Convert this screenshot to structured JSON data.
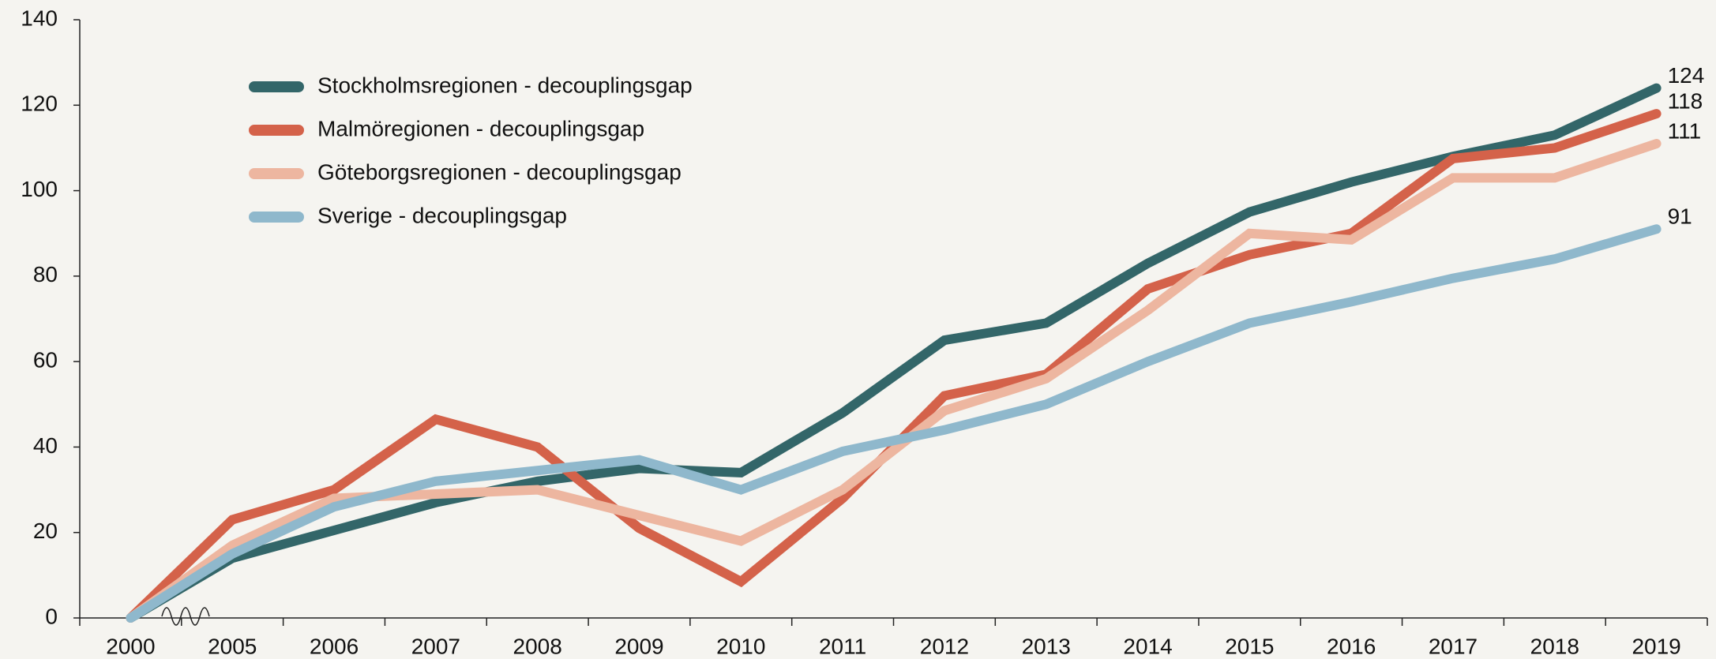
{
  "chart_data": {
    "type": "line",
    "categories": [
      "2000",
      "2005",
      "2006",
      "2007",
      "2008",
      "2009",
      "2010",
      "2011",
      "2012",
      "2013",
      "2014",
      "2015",
      "2016",
      "2017",
      "2018",
      "2019"
    ],
    "series": [
      {
        "name": "Stockholmsregionen - decouplingsgap",
        "color": "#336669",
        "values": [
          0,
          14,
          20.5,
          27,
          32,
          35,
          34,
          48,
          65,
          69,
          83,
          95,
          102,
          108,
          113,
          124
        ]
      },
      {
        "name": "Malmöregionen - decouplingsgap",
        "color": "#d4624a",
        "values": [
          0,
          23,
          30,
          46.5,
          40,
          21,
          8.5,
          28,
          52,
          57,
          77,
          85,
          90,
          107.5,
          110,
          118
        ]
      },
      {
        "name": "Göteborgsregionen - decouplingsgap",
        "color": "#edb6a0",
        "values": [
          0,
          17,
          28,
          29,
          30,
          24,
          18,
          30,
          48.5,
          56,
          72,
          90,
          88.5,
          103,
          103,
          111
        ]
      },
      {
        "name": "Sverige - decouplingsgap",
        "color": "#8fb8cc",
        "values": [
          0,
          15,
          26,
          32,
          34.5,
          37,
          30,
          39,
          44,
          50,
          60,
          69,
          74,
          79.5,
          84,
          91
        ]
      }
    ],
    "ylim": [
      0,
      140
    ],
    "yticks": [
      0,
      20,
      40,
      60,
      80,
      100,
      120,
      140
    ],
    "grid": false,
    "legend": "top-left"
  }
}
